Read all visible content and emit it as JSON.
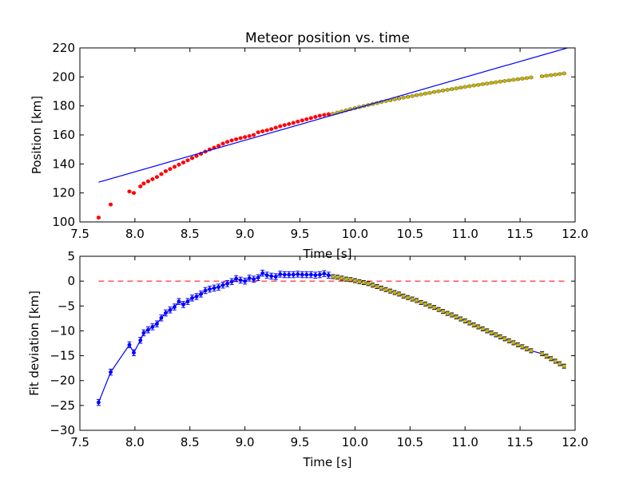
{
  "chart_data": [
    {
      "type": "scatter",
      "title": "Meteor position vs. time",
      "xlabel": "Time [s]",
      "ylabel": "Position [km]",
      "xlim": [
        7.5,
        12.0
      ],
      "ylim": [
        100,
        220
      ],
      "xticks": [
        7.5,
        8.0,
        8.5,
        9.0,
        9.5,
        10.0,
        10.5,
        11.0,
        11.5,
        12.0
      ],
      "xtick_labels": [
        "7.5",
        "8.0",
        "8.5",
        "9.0",
        "9.5",
        "10.0",
        "10.5",
        "11.0",
        "11.5",
        "12.0"
      ],
      "yticks": [
        100,
        120,
        140,
        160,
        180,
        200,
        220
      ],
      "ytick_labels": [
        "100",
        "120",
        "140",
        "160",
        "180",
        "200",
        "220"
      ],
      "grid": false,
      "series": [
        {
          "kind": "points",
          "color": "#ff0000",
          "error": 0.5,
          "x": [
            7.67,
            7.78,
            7.95,
            7.99,
            8.05,
            8.08,
            8.12,
            8.16,
            8.2,
            8.24,
            8.28,
            8.32,
            8.36,
            8.4,
            8.44,
            8.48,
            8.52,
            8.56,
            8.6,
            8.64,
            8.68,
            8.72,
            8.76,
            8.8,
            8.84,
            8.88,
            8.92,
            8.96,
            9.0,
            9.04,
            9.08,
            9.12,
            9.16,
            9.2,
            9.24,
            9.28,
            9.32,
            9.36,
            9.4,
            9.44,
            9.48,
            9.52,
            9.56,
            9.6,
            9.64,
            9.68,
            9.72,
            9.76
          ],
          "y": [
            103.0,
            112.0,
            121.0,
            120.0,
            124.5,
            126.5,
            128.0,
            129.5,
            131.0,
            133.0,
            135.0,
            136.5,
            138.0,
            139.5,
            141.0,
            142.5,
            144.0,
            145.5,
            147.0,
            148.5,
            150.0,
            151.2,
            152.5,
            154.0,
            155.2,
            156.2,
            157.0,
            157.8,
            158.5,
            159.2,
            160.0,
            161.8,
            162.5,
            163.2,
            164.0,
            165.0,
            166.0,
            166.8,
            167.5,
            168.3,
            169.2,
            170.0,
            170.8,
            171.6,
            172.4,
            173.2,
            173.8,
            174.3
          ]
        },
        {
          "kind": "points",
          "color": "#c8b400",
          "error": 0.5,
          "x": [
            9.8,
            9.84,
            9.88,
            9.92,
            9.96,
            10.0,
            10.04,
            10.08,
            10.12,
            10.16,
            10.2,
            10.24,
            10.28,
            10.32,
            10.36,
            10.4,
            10.44,
            10.48,
            10.52,
            10.56,
            10.6,
            10.64,
            10.68,
            10.72,
            10.76,
            10.8,
            10.84,
            10.88,
            10.92,
            10.96,
            11.0,
            11.04,
            11.08,
            11.12,
            11.16,
            11.2,
            11.24,
            11.28,
            11.32,
            11.36,
            11.4,
            11.44,
            11.48,
            11.52,
            11.56,
            11.6,
            11.7,
            11.74,
            11.78,
            11.82,
            11.86,
            11.9
          ],
          "y": [
            174.6,
            175.4,
            176.2,
            177.0,
            177.8,
            178.5,
            179.2,
            179.9,
            180.6,
            181.3,
            182.0,
            182.7,
            183.3,
            183.9,
            184.5,
            185.1,
            185.7,
            186.3,
            186.8,
            187.4,
            187.9,
            188.5,
            189.0,
            189.6,
            190.1,
            190.6,
            191.1,
            191.6,
            192.1,
            192.6,
            193.1,
            193.6,
            194.1,
            194.5,
            195.0,
            195.4,
            195.9,
            196.3,
            196.8,
            197.2,
            197.6,
            198.0,
            198.4,
            198.8,
            199.2,
            199.6,
            200.4,
            200.8,
            201.2,
            201.6,
            202.0,
            202.4
          ]
        },
        {
          "kind": "line",
          "color": "#0000ff",
          "x": [
            7.67,
            11.93
          ],
          "y": [
            127.4,
            220.0
          ]
        }
      ]
    },
    {
      "type": "line",
      "title": "",
      "xlabel": "Time [s]",
      "ylabel": "Fit deviation [km]",
      "xlim": [
        7.5,
        12.0
      ],
      "ylim": [
        -30,
        5
      ],
      "xticks": [
        7.5,
        8.0,
        8.5,
        9.0,
        9.5,
        10.0,
        10.5,
        11.0,
        11.5,
        12.0
      ],
      "xtick_labels": [
        "7.5",
        "8.0",
        "8.5",
        "9.0",
        "9.5",
        "10.0",
        "10.5",
        "11.0",
        "11.5",
        "12.0"
      ],
      "yticks": [
        5,
        0,
        -5,
        -10,
        -15,
        -20,
        -25,
        -30
      ],
      "ytick_labels": [
        "5",
        "0",
        "−5",
        "−10",
        "−15",
        "−20",
        "−25",
        "−30"
      ],
      "grid": false,
      "reference_line": {
        "y": 0,
        "color": "#ff0000",
        "style": "dashed"
      },
      "series": [
        {
          "kind": "line-points",
          "color": "#0000ff",
          "line_color": "#0000ff",
          "error": 0.6,
          "x": [
            7.67,
            7.78,
            7.95,
            7.99,
            8.05,
            8.08,
            8.12,
            8.16,
            8.2,
            8.24,
            8.28,
            8.32,
            8.36,
            8.4,
            8.44,
            8.48,
            8.52,
            8.56,
            8.6,
            8.64,
            8.68,
            8.72,
            8.76,
            8.8,
            8.84,
            8.88,
            8.92,
            8.96,
            9.0,
            9.04,
            9.08,
            9.12,
            9.16,
            9.2,
            9.24,
            9.28,
            9.32,
            9.36,
            9.4,
            9.44,
            9.48,
            9.52,
            9.56,
            9.6,
            9.64,
            9.68,
            9.72,
            9.76
          ],
          "y": [
            -24.4,
            -18.3,
            -12.8,
            -14.4,
            -11.9,
            -10.4,
            -9.8,
            -9.2,
            -8.6,
            -7.4,
            -6.4,
            -5.8,
            -5.2,
            -4.1,
            -4.7,
            -4.1,
            -3.4,
            -3.1,
            -2.6,
            -1.9,
            -1.6,
            -1.4,
            -1.2,
            -0.8,
            -0.5,
            -0.1,
            0.5,
            0.2,
            0.0,
            0.6,
            0.4,
            0.7,
            1.6,
            1.2,
            1.0,
            0.9,
            1.4,
            1.3,
            1.3,
            1.3,
            1.4,
            1.3,
            1.3,
            1.3,
            1.2,
            1.3,
            1.5,
            1.2
          ]
        },
        {
          "kind": "line-points",
          "color": "#c8b400",
          "line_color": "#0000ff",
          "error": 0.4,
          "x": [
            9.8,
            9.84,
            9.88,
            9.92,
            9.96,
            10.0,
            10.04,
            10.08,
            10.12,
            10.16,
            10.2,
            10.24,
            10.28,
            10.32,
            10.36,
            10.4,
            10.44,
            10.48,
            10.52,
            10.56,
            10.6,
            10.64,
            10.68,
            10.72,
            10.76,
            10.8,
            10.84,
            10.88,
            10.92,
            10.96,
            11.0,
            11.04,
            11.08,
            11.12,
            11.16,
            11.2,
            11.24,
            11.28,
            11.32,
            11.36,
            11.4,
            11.44,
            11.48,
            11.52,
            11.56,
            11.6,
            11.7,
            11.74,
            11.78,
            11.82,
            11.86,
            11.9
          ],
          "y": [
            0.9,
            0.8,
            0.6,
            0.4,
            0.3,
            0.1,
            -0.1,
            -0.3,
            -0.5,
            -0.8,
            -1.1,
            -1.4,
            -1.7,
            -2.0,
            -2.3,
            -2.6,
            -3.0,
            -3.3,
            -3.6,
            -3.9,
            -4.3,
            -4.6,
            -5.0,
            -5.3,
            -5.7,
            -6.1,
            -6.5,
            -6.8,
            -7.2,
            -7.6,
            -8.0,
            -8.4,
            -8.8,
            -9.2,
            -9.6,
            -10.0,
            -10.4,
            -10.8,
            -11.2,
            -11.6,
            -12.0,
            -12.4,
            -12.8,
            -13.2,
            -13.6,
            -14.0,
            -14.6,
            -15.1,
            -15.6,
            -16.1,
            -16.6,
            -17.1
          ]
        }
      ]
    }
  ]
}
